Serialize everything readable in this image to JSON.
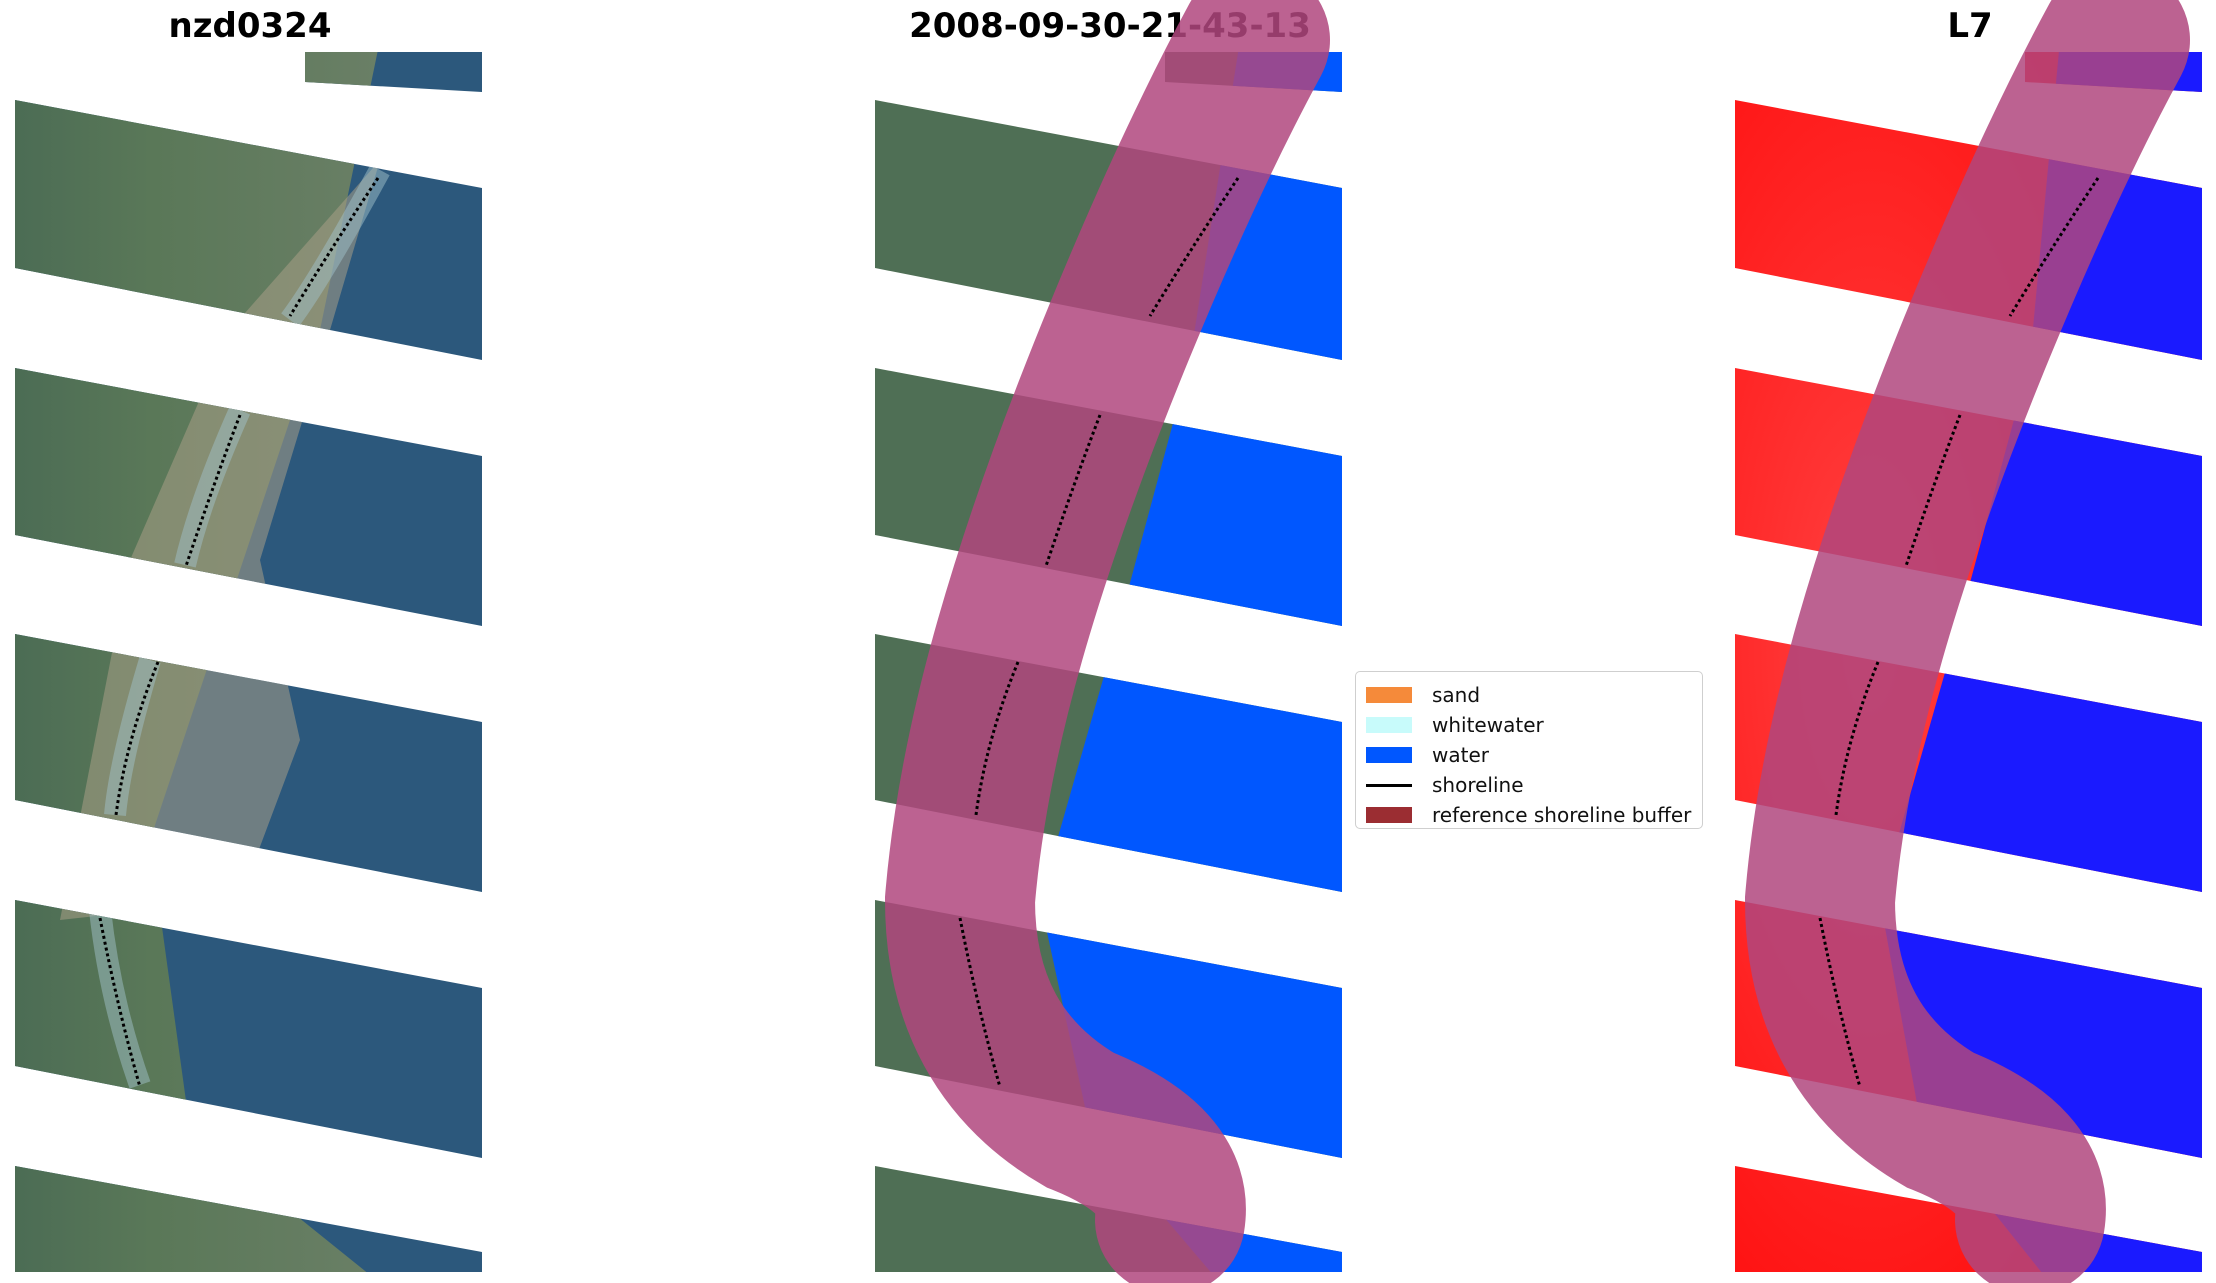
{
  "panels": {
    "left": {
      "title": "nzd0324"
    },
    "center": {
      "title": "2008-09-30-21-43-13"
    },
    "right": {
      "title": "L7"
    }
  },
  "legend": {
    "items": [
      {
        "label": "sand",
        "color": "#f58a3a",
        "kind": "patch"
      },
      {
        "label": "whitewater",
        "color": "#c8fbfb",
        "kind": "patch"
      },
      {
        "label": "water",
        "color": "#0057ff",
        "kind": "patch"
      },
      {
        "label": "shoreline",
        "color": "#000000",
        "kind": "line"
      },
      {
        "label": "reference shoreline buffer",
        "color": "#9b2d32",
        "kind": "patch"
      }
    ]
  },
  "colors": {
    "land": "#4f6f55",
    "sea": "#2c587c",
    "classified_water": "#0057ff",
    "buffer": "#b0467e",
    "ndwi_land": "#ff1a1a",
    "ndwi_water": "#1a1aff"
  }
}
